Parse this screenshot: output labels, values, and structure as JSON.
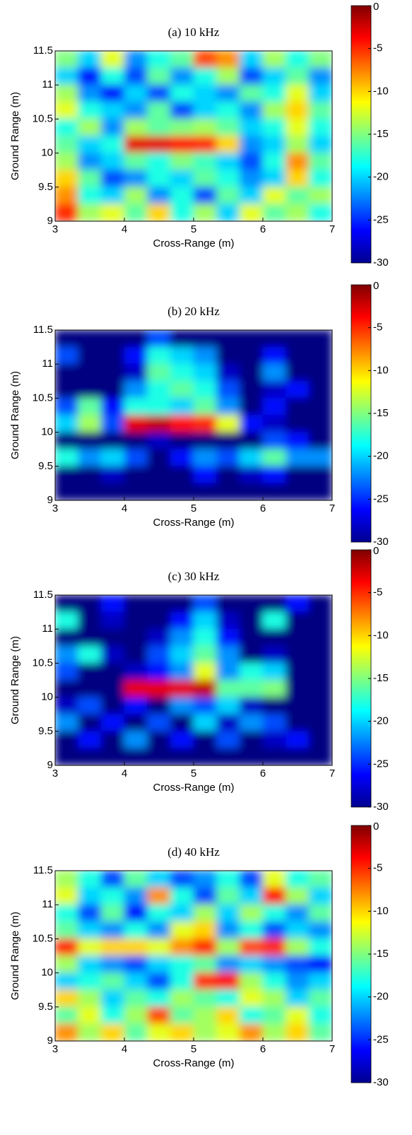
{
  "chart_data": [
    {
      "type": "heatmap",
      "title": "(a) 10 kHz",
      "xlabel": "Cross-Range (m)",
      "ylabel": "Ground Range (m)",
      "colormap": "jet",
      "xlim": [
        3,
        7
      ],
      "xticks": [
        3,
        4,
        5,
        6,
        7
      ],
      "ylim": [
        9,
        11.5
      ],
      "yticks": [
        9,
        9.5,
        10,
        10.5,
        11,
        11.5
      ],
      "clim": [
        -30,
        0
      ],
      "cticks": [
        0,
        -5,
        -10,
        -15,
        -20,
        -25,
        -30
      ],
      "z": [
        [
          -15,
          -20,
          -12,
          -22,
          -18,
          -16,
          -6,
          -8,
          -20,
          -14,
          -18,
          -15
        ],
        [
          -20,
          -26,
          -18,
          -24,
          -16,
          -22,
          -18,
          -14,
          -24,
          -20,
          -16,
          -22
        ],
        [
          -14,
          -22,
          -26,
          -20,
          -24,
          -18,
          -20,
          -22,
          -16,
          -18,
          -12,
          -20
        ],
        [
          -12,
          -18,
          -20,
          -22,
          -16,
          -24,
          -20,
          -18,
          -22,
          -14,
          -10,
          -16
        ],
        [
          -18,
          -14,
          -22,
          -14,
          -16,
          -15,
          -14,
          -16,
          -20,
          -18,
          -12,
          -18
        ],
        [
          -16,
          -20,
          -18,
          -3,
          -3,
          -4,
          -5,
          -10,
          -22,
          -20,
          -14,
          -20
        ],
        [
          -14,
          -22,
          -20,
          -16,
          -18,
          -15,
          -17,
          -20,
          -24,
          -18,
          -8,
          -16
        ],
        [
          -10,
          -16,
          -24,
          -22,
          -18,
          -20,
          -16,
          -18,
          -22,
          -20,
          -10,
          -18
        ],
        [
          -8,
          -18,
          -20,
          -14,
          -22,
          -18,
          -24,
          -16,
          -20,
          -12,
          -16,
          -14
        ],
        [
          -5,
          -14,
          -12,
          -16,
          -10,
          -18,
          -14,
          -20,
          -12,
          -16,
          -14,
          -18
        ]
      ]
    },
    {
      "type": "heatmap",
      "title": "(b) 20 kHz",
      "xlabel": "Cross-Range (m)",
      "ylabel": "Ground Range (m)",
      "colormap": "jet",
      "xlim": [
        3,
        7
      ],
      "xticks": [
        3,
        4,
        5,
        6,
        7
      ],
      "ylim": [
        9,
        11.5
      ],
      "yticks": [
        9,
        9.5,
        10,
        10.5,
        11,
        11.5
      ],
      "clim": [
        -30,
        0
      ],
      "cticks": [
        0,
        -5,
        -10,
        -15,
        -20,
        -25,
        -30
      ],
      "z": [
        [
          -30,
          -30,
          -30,
          -30,
          -24,
          -30,
          -30,
          -30,
          -30,
          -30,
          -30,
          -30
        ],
        [
          -24,
          -30,
          -30,
          -26,
          -18,
          -20,
          -22,
          -30,
          -30,
          -26,
          -30,
          -30
        ],
        [
          -30,
          -30,
          -30,
          -28,
          -16,
          -18,
          -20,
          -28,
          -30,
          -22,
          -30,
          -30
        ],
        [
          -30,
          -30,
          -30,
          -22,
          -18,
          -16,
          -18,
          -24,
          -30,
          -28,
          -26,
          -30
        ],
        [
          -24,
          -16,
          -26,
          -18,
          -18,
          -20,
          -16,
          -22,
          -30,
          -26,
          -30,
          -30
        ],
        [
          -20,
          -14,
          -24,
          -3,
          -2,
          -4,
          -5,
          -12,
          -26,
          -28,
          -30,
          -30
        ],
        [
          -30,
          -30,
          -30,
          -30,
          -28,
          -30,
          -30,
          -30,
          -30,
          -24,
          -26,
          -30
        ],
        [
          -18,
          -22,
          -20,
          -24,
          -30,
          -26,
          -22,
          -24,
          -20,
          -16,
          -22,
          -22
        ],
        [
          -30,
          -30,
          -28,
          -30,
          -30,
          -30,
          -26,
          -30,
          -28,
          -26,
          -30,
          -30
        ],
        [
          -30,
          -30,
          -30,
          -30,
          -30,
          -30,
          -30,
          -30,
          -30,
          -30,
          -30,
          -30
        ]
      ]
    },
    {
      "type": "heatmap",
      "title": "(c) 30 kHz",
      "xlabel": "Cross-Range (m)",
      "ylabel": "Ground Range (m)",
      "colormap": "jet",
      "xlim": [
        3,
        7
      ],
      "xticks": [
        3,
        4,
        5,
        6,
        7
      ],
      "ylim": [
        9,
        11.5
      ],
      "yticks": [
        9,
        9.5,
        10,
        10.5,
        11,
        11.5
      ],
      "clim": [
        -30,
        0
      ],
      "cticks": [
        0,
        -5,
        -10,
        -15,
        -20,
        -25,
        -30
      ],
      "z": [
        [
          -30,
          -30,
          -26,
          -30,
          -30,
          -30,
          -24,
          -30,
          -30,
          -30,
          -26,
          -30
        ],
        [
          -18,
          -30,
          -28,
          -30,
          -30,
          -26,
          -20,
          -28,
          -30,
          -18,
          -30,
          -30
        ],
        [
          -30,
          -30,
          -30,
          -30,
          -28,
          -22,
          -18,
          -26,
          -30,
          -30,
          -30,
          -30
        ],
        [
          -22,
          -18,
          -28,
          -30,
          -24,
          -20,
          -16,
          -22,
          -30,
          -28,
          -30,
          -30
        ],
        [
          -24,
          -30,
          -30,
          -28,
          -26,
          -22,
          -12,
          -22,
          -18,
          -20,
          -30,
          -30
        ],
        [
          -30,
          -30,
          -30,
          -3,
          -3,
          -3,
          -2,
          -16,
          -16,
          -15,
          -30,
          -30
        ],
        [
          -28,
          -24,
          -30,
          -26,
          -30,
          -22,
          -24,
          -20,
          -28,
          -30,
          -30,
          -30
        ],
        [
          -22,
          -30,
          -26,
          -30,
          -24,
          -30,
          -20,
          -28,
          -22,
          -24,
          -30,
          -30
        ],
        [
          -30,
          -26,
          -30,
          -22,
          -30,
          -26,
          -30,
          -24,
          -30,
          -28,
          -26,
          -30
        ],
        [
          -30,
          -30,
          -30,
          -30,
          -30,
          -30,
          -30,
          -30,
          -30,
          -30,
          -30,
          -30
        ]
      ]
    },
    {
      "type": "heatmap",
      "title": "(d) 40 kHz",
      "xlabel": "Cross-Range (m)",
      "ylabel": "Ground Range (m)",
      "colormap": "jet",
      "xlim": [
        3,
        7
      ],
      "xticks": [
        3,
        4,
        5,
        6,
        7
      ],
      "ylim": [
        9,
        11.5
      ],
      "yticks": [
        9,
        9.5,
        10,
        10.5,
        11,
        11.5
      ],
      "clim": [
        -30,
        0
      ],
      "cticks": [
        0,
        -5,
        -10,
        -15,
        -20,
        -25,
        -30
      ],
      "z": [
        [
          -14,
          -18,
          -24,
          -16,
          -20,
          -24,
          -22,
          -18,
          -24,
          -12,
          -18,
          -16
        ],
        [
          -12,
          -20,
          -18,
          -22,
          -8,
          -18,
          -24,
          -16,
          -20,
          -4,
          -14,
          -20
        ],
        [
          -18,
          -24,
          -16,
          -26,
          -18,
          -20,
          -14,
          -20,
          -14,
          -18,
          -22,
          -16
        ],
        [
          -16,
          -20,
          -22,
          -18,
          -22,
          -12,
          -10,
          -22,
          -18,
          -24,
          -20,
          -22
        ],
        [
          -5,
          -12,
          -10,
          -10,
          -12,
          -8,
          -5,
          -14,
          -6,
          -5,
          -14,
          -18
        ],
        [
          -14,
          -20,
          -22,
          -24,
          -20,
          -18,
          -16,
          -22,
          -20,
          -22,
          -24,
          -26
        ],
        [
          -20,
          -18,
          -16,
          -20,
          -24,
          -18,
          -5,
          -4,
          -14,
          -18,
          -22,
          -20
        ],
        [
          -10,
          -14,
          -20,
          -16,
          -18,
          -14,
          -16,
          -18,
          -12,
          -14,
          -20,
          -16
        ],
        [
          -16,
          -12,
          -18,
          -14,
          -6,
          -16,
          -14,
          -10,
          -18,
          -16,
          -12,
          -18
        ],
        [
          -8,
          -14,
          -10,
          -16,
          -12,
          -10,
          -14,
          -12,
          -8,
          -14,
          -10,
          -16
        ]
      ]
    }
  ]
}
